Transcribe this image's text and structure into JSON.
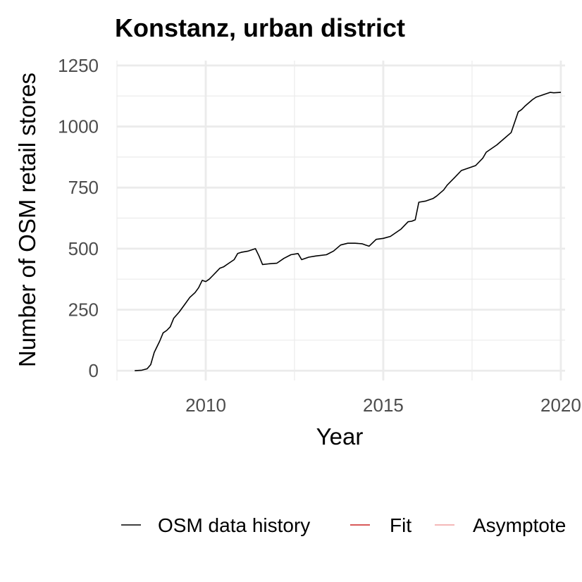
{
  "chart_data": {
    "type": "line",
    "title": "Konstanz, urban district",
    "xlabel": "Year",
    "ylabel": "Number of OSM retail stores",
    "xlim": [
      2007.5,
      2020.12
    ],
    "ylim": [
      -40,
      1270
    ],
    "x_ticks": [
      2010,
      2015,
      2020
    ],
    "x_tick_labels": [
      "2010",
      "2015",
      "2020"
    ],
    "x_minor_ticks": [
      2007.5,
      2012.5,
      2017.5
    ],
    "y_ticks": [
      0,
      250,
      500,
      750,
      1000,
      1250
    ],
    "y_tick_labels": [
      "0",
      "250",
      "500",
      "750",
      "1000",
      "1250"
    ],
    "y_minor_ticks": [
      125,
      375,
      625,
      875,
      1125
    ],
    "grid": true,
    "legend_position": "bottom",
    "legend": [
      {
        "name": "OSM data history",
        "color": "#000000"
      },
      {
        "name": "Fit",
        "color": "#cc2222"
      },
      {
        "name": "Asymptote",
        "color": "#f0a0a0"
      }
    ],
    "series": [
      {
        "name": "OSM data history",
        "color": "#000000",
        "x": [
          2008.0,
          2008.2,
          2008.35,
          2008.45,
          2008.55,
          2008.7,
          2008.8,
          2008.9,
          2009.0,
          2009.1,
          2009.25,
          2009.4,
          2009.55,
          2009.7,
          2009.8,
          2009.9,
          2010.0,
          2010.1,
          2010.2,
          2010.3,
          2010.4,
          2010.5,
          2010.65,
          2010.8,
          2010.9,
          2011.0,
          2011.2,
          2011.4,
          2011.5,
          2011.6,
          2011.8,
          2012.0,
          2012.2,
          2012.4,
          2012.6,
          2012.7,
          2012.9,
          2013.1,
          2013.4,
          2013.6,
          2013.8,
          2014.0,
          2014.2,
          2014.4,
          2014.5,
          2014.6,
          2014.8,
          2015.0,
          2015.2,
          2015.4,
          2015.5,
          2015.7,
          2015.8,
          2015.9,
          2016.0,
          2016.2,
          2016.4,
          2016.5,
          2016.7,
          2016.8,
          2017.0,
          2017.2,
          2017.4,
          2017.6,
          2017.8,
          2017.9,
          2018.0,
          2018.2,
          2018.4,
          2018.6,
          2018.8,
          2018.9,
          2019.0,
          2019.2,
          2019.3,
          2019.5,
          2019.7,
          2019.8,
          2020.0
        ],
        "y": [
          0,
          2,
          8,
          25,
          75,
          120,
          155,
          165,
          180,
          215,
          240,
          270,
          300,
          320,
          340,
          370,
          365,
          375,
          390,
          405,
          420,
          425,
          440,
          455,
          480,
          485,
          490,
          500,
          470,
          435,
          438,
          440,
          460,
          475,
          480,
          455,
          465,
          470,
          475,
          490,
          515,
          522,
          522,
          520,
          515,
          510,
          538,
          542,
          550,
          570,
          580,
          610,
          612,
          618,
          690,
          695,
          705,
          715,
          740,
          760,
          790,
          820,
          830,
          840,
          870,
          895,
          905,
          925,
          950,
          975,
          1060,
          1070,
          1085,
          1110,
          1120,
          1130,
          1140,
          1138,
          1140
        ]
      }
    ]
  }
}
